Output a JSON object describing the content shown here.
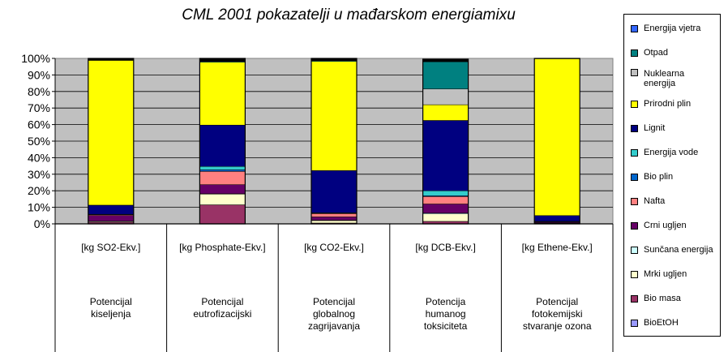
{
  "chart_data": {
    "type": "bar",
    "stacked": "percent",
    "title": "CML 2001 pokazatelji u mađarskom energiamixu",
    "ylim": [
      0,
      100
    ],
    "yticks": [
      "0%",
      "10%",
      "20%",
      "30%",
      "40%",
      "50%",
      "60%",
      "70%",
      "80%",
      "90%",
      "100%"
    ],
    "grid": true,
    "legend_position": "right",
    "categories": [
      {
        "unit": "[kg SO2-Ekv.]",
        "name": "Potencijal kiseljenja"
      },
      {
        "unit": "[kg Phosphate-Ekv.]",
        "name": "Potencijal eutrofizacijski"
      },
      {
        "unit": "[kg CO2-Ekv.]",
        "name": "Potencijal globalnog zagrijavanja"
      },
      {
        "unit": "[kg DCB-Ekv.]",
        "name": "Potencija humanog toksiciteta"
      },
      {
        "unit": "[kg Ethene-Ekv.]",
        "name": "Potencijal fotokemijski stvaranje ozona"
      }
    ],
    "series": [
      {
        "name": "Bio masa",
        "color": "#993366",
        "values": [
          1.0,
          11.5,
          0.5,
          1.5,
          0.3
        ]
      },
      {
        "name": "Mrki ugljen",
        "color": "#FFFFCC",
        "values": [
          0.5,
          6.5,
          1.5,
          4.5,
          0.2
        ]
      },
      {
        "name": "Sunčana energija",
        "color": "#CCFFFF",
        "values": [
          0.1,
          0.2,
          0.2,
          0.5,
          0.0
        ]
      },
      {
        "name": "Crni ugljen",
        "color": "#660066",
        "values": [
          3.5,
          5.5,
          2.0,
          5.5,
          0.5
        ]
      },
      {
        "name": "Nafta",
        "color": "#FF8080",
        "values": [
          0.5,
          8.0,
          2.0,
          4.5,
          0.3
        ]
      },
      {
        "name": "Bio plin",
        "color": "#0066CC",
        "values": [
          0.1,
          1.0,
          0.2,
          0.5,
          0.1
        ]
      },
      {
        "name": "Energija vode",
        "color": "#33CCCC",
        "values": [
          0.1,
          2.0,
          0.3,
          3.0,
          0.1
        ]
      },
      {
        "name": "Lignit",
        "color": "#000080",
        "values": [
          5.5,
          25.0,
          25.5,
          42.5,
          3.5
        ]
      },
      {
        "name": "Prirodni plin",
        "color": "#FFFF00",
        "values": [
          87.5,
          38.0,
          66.0,
          9.5,
          94.8
        ]
      },
      {
        "name": "Nuklearna energija",
        "color": "#C0C0C0",
        "values": [
          0.0,
          0.0,
          0.0,
          9.5,
          0.0
        ]
      },
      {
        "name": "Otpad",
        "color": "#008080",
        "values": [
          0.0,
          0.5,
          0.5,
          16.5,
          0.0
        ]
      },
      {
        "name": "Energija vjetra",
        "color": "#3366FF",
        "values": [
          0.0,
          0.0,
          0.0,
          0.0,
          0.0
        ]
      },
      {
        "name": "BioEtOH",
        "color": "#9999FF",
        "values": [
          0.0,
          0.0,
          0.0,
          0.0,
          0.0
        ]
      },
      {
        "name": "",
        "color": "#000000",
        "values": [
          1.2,
          1.8,
          1.3,
          1.5,
          0.2
        ]
      }
    ],
    "legend": [
      {
        "label": "Energija vjetra",
        "color": "#3366FF"
      },
      {
        "label": "Otpad",
        "color": "#008080"
      },
      {
        "label": "Nuklearna energija",
        "color": "#C0C0C0"
      },
      {
        "label": "Prirodni plin",
        "color": "#FFFF00"
      },
      {
        "label": "Lignit",
        "color": "#000080"
      },
      {
        "label": "Energija vode",
        "color": "#33CCCC"
      },
      {
        "label": "Bio plin",
        "color": "#0066CC"
      },
      {
        "label": "Nafta",
        "color": "#FF8080"
      },
      {
        "label": "Crni ugljen",
        "color": "#660066"
      },
      {
        "label": "Sunčana energija",
        "color": "#CCFFFF"
      },
      {
        "label": "Mrki ugljen",
        "color": "#FFFFCC"
      },
      {
        "label": "Bio masa",
        "color": "#993366"
      },
      {
        "label": "BioEtOH",
        "color": "#9999FF"
      }
    ],
    "plot_background": "#C0C0C0"
  }
}
